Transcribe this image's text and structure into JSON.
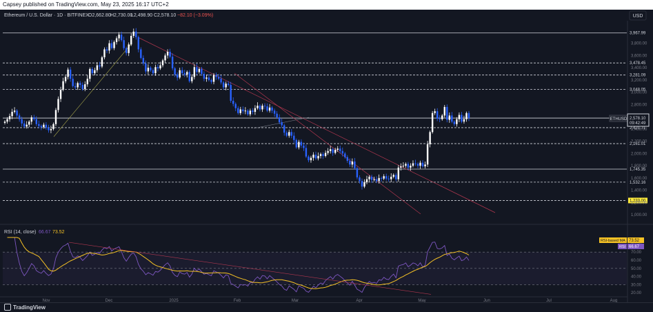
{
  "publisher_line": "Capsey published on TradingView.com, May 23, 2025 16:17 UTC+2",
  "symbol": "Ethereum / U.S. Dollar · 1D · BITFINEX",
  "ohlc": {
    "o": "O2,662.80",
    "h": "H2,730.00",
    "l": "L2,498.90",
    "c": "C2,578.10",
    "chg": "−82.10 (−3.09%)"
  },
  "currency": "USD",
  "brand": "TradingView",
  "price_badge": {
    "symbol": "ETHUSD",
    "price": "2,578.10",
    "countdown": "09:42:49"
  },
  "colors": {
    "bg": "#131722",
    "up": "#ffffff",
    "down": "#2962ff",
    "grid": "#2a2e39",
    "rsi": "#7e57c2",
    "rsi_ma": "#f7c325",
    "trend": "#b2374f",
    "highlight": "#ffeb3b"
  },
  "chart_data": [
    {
      "type": "candlestick",
      "title": "Ethereum / U.S. Dollar · 1D · BITFINEX",
      "x_ticks": [
        "Nov",
        "Dec",
        "2025",
        "Feb",
        "Mar",
        "Apr",
        "May",
        "Jun",
        "Jul",
        "Aug"
      ],
      "y_ticks": [
        "1,000.00",
        "1,200.00",
        "1,400.00",
        "1,600.00",
        "1,800.00",
        "2,000.00",
        "2,200.00",
        "2,400.00",
        "2,600.00",
        "2,800.00",
        "3,000.00",
        "3,200.00",
        "3,400.00",
        "3,600.00",
        "3,800.00"
      ],
      "ylim": [
        900,
        4100
      ],
      "horizontal_levels": [
        {
          "value": 3967.99,
          "label": "3,967.99",
          "style": "solid"
        },
        {
          "value": 3478.45,
          "label": "3,478.45",
          "style": "dashed"
        },
        {
          "value": 3281.09,
          "label": "3,281.09",
          "style": "dashed"
        },
        {
          "value": 3048.05,
          "label": "3,048.05",
          "style": "dashed"
        },
        {
          "value": 2578.1,
          "label": "2,578.10",
          "style": "solid"
        },
        {
          "value": 2421.71,
          "label": "2,421.71",
          "style": "dashed"
        },
        {
          "value": 2161.01,
          "label": "2,161.01",
          "style": "dashed"
        },
        {
          "value": 1745.35,
          "label": "1,745.35",
          "style": "solid"
        },
        {
          "value": 1532.16,
          "label": "1,532.16",
          "style": "dashed"
        },
        {
          "value": 1233.0,
          "label": "1,233.00",
          "style": "dashed",
          "highlight": true
        }
      ],
      "close_series": [
        2520,
        2560,
        2610,
        2680,
        2700,
        2620,
        2560,
        2490,
        2440,
        2470,
        2520,
        2590,
        2560,
        2480,
        2450,
        2430,
        2470,
        2420,
        2380,
        2400,
        2480,
        2710,
        2890,
        3040,
        3180,
        3250,
        3370,
        3220,
        3100,
        3080,
        3150,
        3120,
        3050,
        3130,
        3220,
        3380,
        3310,
        3360,
        3440,
        3420,
        3570,
        3700,
        3680,
        3800,
        3720,
        3820,
        3880,
        3940,
        3850,
        3720,
        3640,
        3780,
        3920,
        3990,
        3900,
        3700,
        3560,
        3470,
        3340,
        3400,
        3360,
        3310,
        3410,
        3390,
        3440,
        3520,
        3600,
        3660,
        3580,
        3390,
        3290,
        3240,
        3360,
        3310,
        3290,
        3330,
        3180,
        3250,
        3410,
        3330,
        3380,
        3300,
        3220,
        3240,
        3200,
        3170,
        3280,
        3250,
        3220,
        3160,
        3080,
        3140,
        3120,
        2860,
        2810,
        2740,
        2660,
        2720,
        2690,
        2700,
        2640,
        2700,
        2680,
        2740,
        2780,
        2720,
        2780,
        2770,
        2700,
        2750,
        2700,
        2650,
        2590,
        2510,
        2460,
        2340,
        2290,
        2350,
        2290,
        2220,
        2100,
        2190,
        2130,
        2090,
        1950,
        1890,
        1930,
        1980,
        1920,
        1960,
        1990,
        1960,
        2010,
        2040,
        2070,
        2010,
        2060,
        2080,
        2040,
        2000,
        1940,
        1880,
        1820,
        1870,
        1760,
        1610,
        1550,
        1460,
        1530,
        1580,
        1620,
        1570,
        1580,
        1550,
        1600,
        1590,
        1630,
        1590,
        1580,
        1620,
        1650,
        1580,
        1770,
        1790,
        1800,
        1830,
        1770,
        1800,
        1840,
        1830,
        1800,
        1850,
        1790,
        1820,
        2150,
        2350,
        2660,
        2690,
        2570,
        2560,
        2620,
        2760,
        2550,
        2620,
        2520,
        2480,
        2560,
        2630,
        2520,
        2560,
        2660,
        2578
      ]
    },
    {
      "type": "line",
      "title": "RSI (14, close)",
      "series": [
        {
          "name": "RSI",
          "last": "66.67"
        },
        {
          "name": "RSI-based MA",
          "last": "73.52"
        }
      ],
      "y_ticks": [
        "20.00",
        "30.00",
        "40.00",
        "50.00",
        "60.00",
        "70.00",
        "80.00"
      ],
      "ylim": [
        15,
        88
      ],
      "band": [
        30,
        70
      ]
    }
  ],
  "rsi_header": {
    "label": "RSI (14, close)",
    "rsi_value": "66.67",
    "ma_value": "73.52"
  },
  "rsi_badges": {
    "ma_label": "RSI-based MA",
    "ma_value": "73.52",
    "rsi_label": "RSI",
    "rsi_value": "66.67"
  }
}
